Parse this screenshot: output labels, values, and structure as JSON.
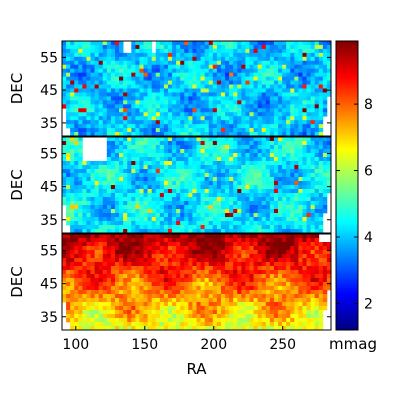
{
  "chart_data": [
    {
      "type": "heatmap",
      "panel": "top",
      "ylabel": "DEC",
      "xlim": [
        90,
        285
      ],
      "ylim": [
        31,
        60
      ],
      "yticks": [
        35,
        45,
        55
      ],
      "value_range": [
        3.0,
        5.0
      ],
      "typical_value": 4.0,
      "notable": "mostly blue/cyan (~3-5 mmag), scattered yellow/red outliers, white gaps at top edge near RA 115 and 140"
    },
    {
      "type": "heatmap",
      "panel": "middle",
      "ylabel": "DEC",
      "xlim": [
        90,
        285
      ],
      "ylim": [
        31,
        60
      ],
      "yticks": [
        35,
        45,
        55
      ],
      "value_range": [
        3.0,
        6.0
      ],
      "typical_value": 4.3,
      "notable": "blue/cyan with more green/yellow streaks (~5-7 mmag), white gaps top-left near RA 100-115, DEC 52-58"
    },
    {
      "type": "heatmap",
      "panel": "bottom",
      "xlabel": "RA",
      "ylabel": "DEC",
      "xlim": [
        90,
        285
      ],
      "ylim": [
        31,
        60
      ],
      "xticks": [
        100,
        150,
        200,
        250
      ],
      "yticks": [
        35,
        45,
        55
      ],
      "value_range": [
        6.0,
        9.5
      ],
      "typical_value": 8.0,
      "notable": "red/orange at high DEC (~9 mmag), yellow/green at lower DEC (~6-7 mmag)"
    }
  ],
  "colorbar": {
    "colormap": "jet",
    "min": 1.2,
    "max": 9.9,
    "ticks": [
      2,
      4,
      6,
      8
    ],
    "label": "mmag"
  }
}
